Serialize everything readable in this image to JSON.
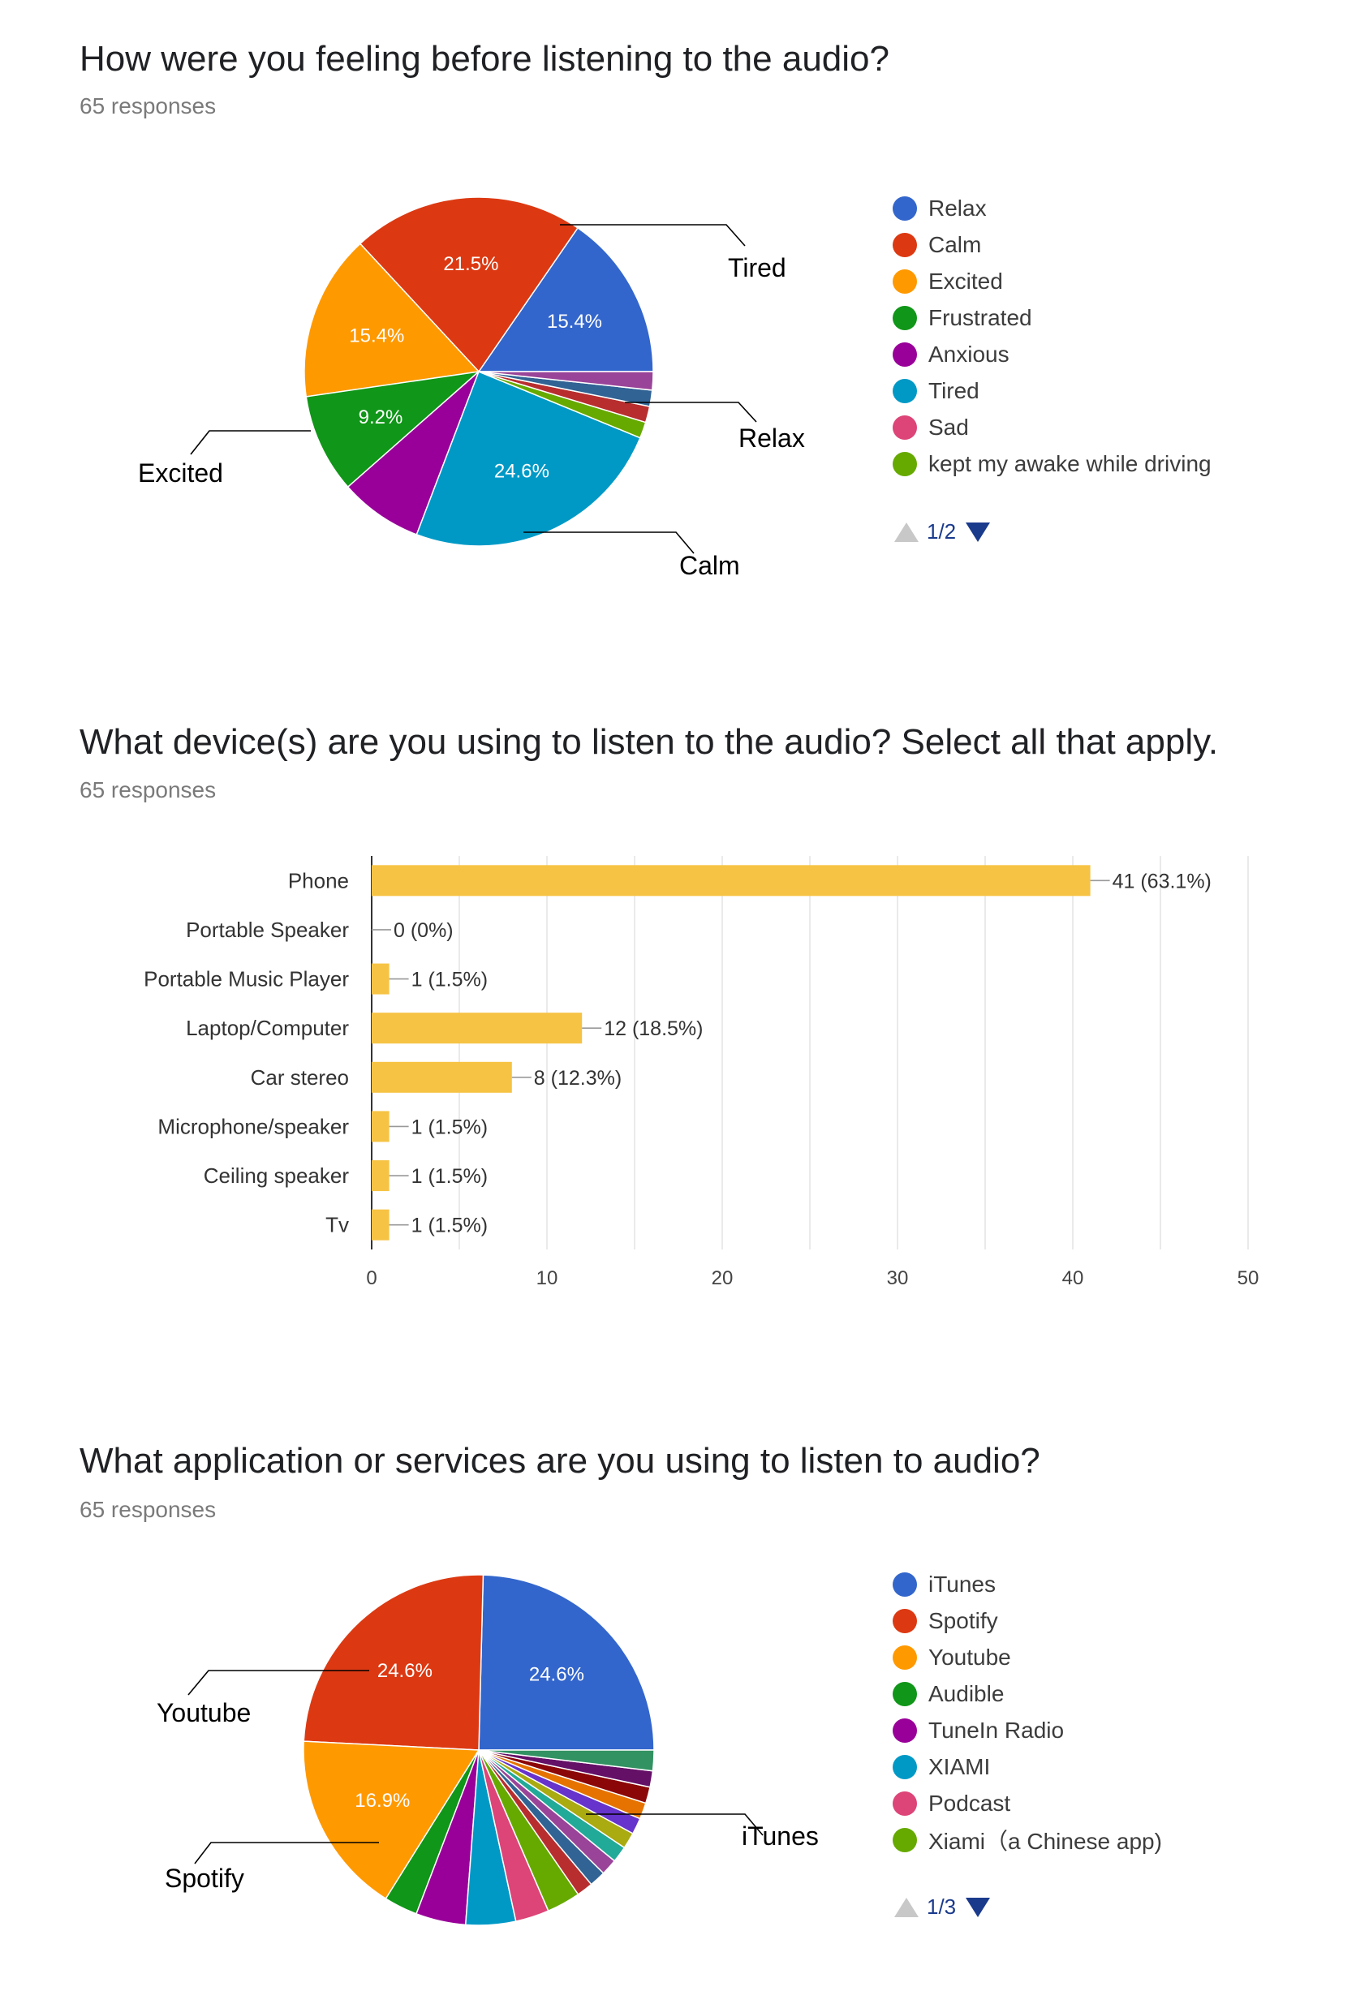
{
  "sections": {
    "feeling": {
      "title": "How were you feeling before listening to the audio?",
      "responses": "65 responses"
    },
    "device": {
      "title": "What device(s) are you using to listen to the audio? Select all that apply.",
      "responses": "65 responses"
    },
    "apps": {
      "title": "What application or services are you using to listen to audio?",
      "responses": "65 responses"
    }
  },
  "chart_data": [
    {
      "type": "pie",
      "title": "How were you feeling before listening to the audio?",
      "subtitle": "65 responses",
      "slices": [
        {
          "name": "Relax",
          "percent": 15.4,
          "color": "#3366cc",
          "label": "15.4%"
        },
        {
          "name": "Calm",
          "percent": 21.5,
          "color": "#dc3912",
          "label": "21.5%"
        },
        {
          "name": "Excited",
          "percent": 15.4,
          "color": "#ff9900",
          "label": "15.4%"
        },
        {
          "name": "Frustrated",
          "percent": 9.2,
          "color": "#109618",
          "label": "9.2%"
        },
        {
          "name": "Anxious",
          "percent": 7.7,
          "color": "#990099",
          "label": ""
        },
        {
          "name": "Tired",
          "percent": 24.6,
          "color": "#0099c6",
          "label": "24.6%"
        },
        {
          "name": "",
          "percent": 1.5,
          "color": "#66aa00",
          "label": ""
        },
        {
          "name": "",
          "percent": 1.5,
          "color": "#b82e2e",
          "label": ""
        },
        {
          "name": "",
          "percent": 1.5,
          "color": "#316395",
          "label": ""
        },
        {
          "name": "",
          "percent": 1.7,
          "color": "#994499",
          "label": ""
        }
      ],
      "legend": [
        {
          "label": "Relax",
          "color": "#3366cc"
        },
        {
          "label": "Calm",
          "color": "#dc3912"
        },
        {
          "label": "Excited",
          "color": "#ff9900"
        },
        {
          "label": "Frustrated",
          "color": "#109618"
        },
        {
          "label": "Anxious",
          "color": "#990099"
        },
        {
          "label": "Tired",
          "color": "#0099c6"
        },
        {
          "label": "Sad",
          "color": "#dd4477"
        },
        {
          "label": "kept my awake while driving",
          "color": "#66aa00"
        }
      ],
      "pager": "1/2",
      "callouts": [
        "Tired",
        "Relax",
        "Calm",
        "Excited"
      ]
    },
    {
      "type": "bar",
      "orientation": "horizontal",
      "title": "What device(s) are you using to listen to the audio? Select all that apply.",
      "subtitle": "65 responses",
      "categories": [
        "Phone",
        "Portable Speaker",
        "Portable Music Player",
        "Laptop/Computer",
        "Car stereo",
        "Microphone/speaker",
        "Ceiling speaker",
        "Tv"
      ],
      "values": [
        41,
        0,
        1,
        12,
        8,
        1,
        1,
        1
      ],
      "value_labels": [
        "41 (63.1%)",
        "0 (0%)",
        "1 (1.5%)",
        "12 (18.5%)",
        "8 (12.3%)",
        "1 (1.5%)",
        "1 (1.5%)",
        "1 (1.5%)"
      ],
      "xlim": [
        0,
        50
      ],
      "xticks": [
        "0",
        "10",
        "20",
        "30",
        "40",
        "50"
      ],
      "color": "#f6c344",
      "grid": true
    },
    {
      "type": "pie",
      "title": "What application or services are you using to listen to audio?",
      "subtitle": "65 responses",
      "slices": [
        {
          "name": "iTunes",
          "percent": 24.6,
          "color": "#3366cc",
          "label": "24.6%"
        },
        {
          "name": "Spotify",
          "percent": 24.6,
          "color": "#dc3912",
          "label": "24.6%"
        },
        {
          "name": "Youtube",
          "percent": 16.9,
          "color": "#ff9900",
          "label": "16.9%"
        },
        {
          "name": "Audible",
          "percent": 3.1,
          "color": "#109618",
          "label": ""
        },
        {
          "name": "TuneIn Radio",
          "percent": 4.6,
          "color": "#990099",
          "label": ""
        },
        {
          "name": "XIAMI",
          "percent": 4.6,
          "color": "#0099c6",
          "label": ""
        },
        {
          "name": "Podcast",
          "percent": 3.1,
          "color": "#dd4477",
          "label": ""
        },
        {
          "name": "Xiami (a Chinese app)",
          "percent": 3.1,
          "color": "#66aa00",
          "label": ""
        },
        {
          "name": "",
          "percent": 1.5,
          "color": "#b82e2e",
          "label": ""
        },
        {
          "name": "",
          "percent": 1.5,
          "color": "#316395",
          "label": ""
        },
        {
          "name": "",
          "percent": 1.5,
          "color": "#994499",
          "label": ""
        },
        {
          "name": "",
          "percent": 1.5,
          "color": "#22aa99",
          "label": ""
        },
        {
          "name": "",
          "percent": 1.5,
          "color": "#aaaa11",
          "label": ""
        },
        {
          "name": "",
          "percent": 1.5,
          "color": "#6633cc",
          "label": ""
        },
        {
          "name": "",
          "percent": 1.5,
          "color": "#e67300",
          "label": ""
        },
        {
          "name": "",
          "percent": 1.5,
          "color": "#8b0707",
          "label": ""
        },
        {
          "name": "",
          "percent": 1.5,
          "color": "#651067",
          "label": ""
        },
        {
          "name": "",
          "percent": 1.9,
          "color": "#329262",
          "label": ""
        }
      ],
      "legend": [
        {
          "label": "iTunes",
          "color": "#3366cc"
        },
        {
          "label": "Spotify",
          "color": "#dc3912"
        },
        {
          "label": "Youtube",
          "color": "#ff9900"
        },
        {
          "label": "Audible",
          "color": "#109618"
        },
        {
          "label": "TuneIn Radio",
          "color": "#990099"
        },
        {
          "label": "XIAMI",
          "color": "#0099c6"
        },
        {
          "label": "Podcast",
          "color": "#dd4477"
        },
        {
          "label": "Xiami（a Chinese app)",
          "color": "#66aa00"
        }
      ],
      "pager": "1/3",
      "callouts": [
        "Youtube",
        "Spotify",
        "iTunes"
      ]
    }
  ]
}
